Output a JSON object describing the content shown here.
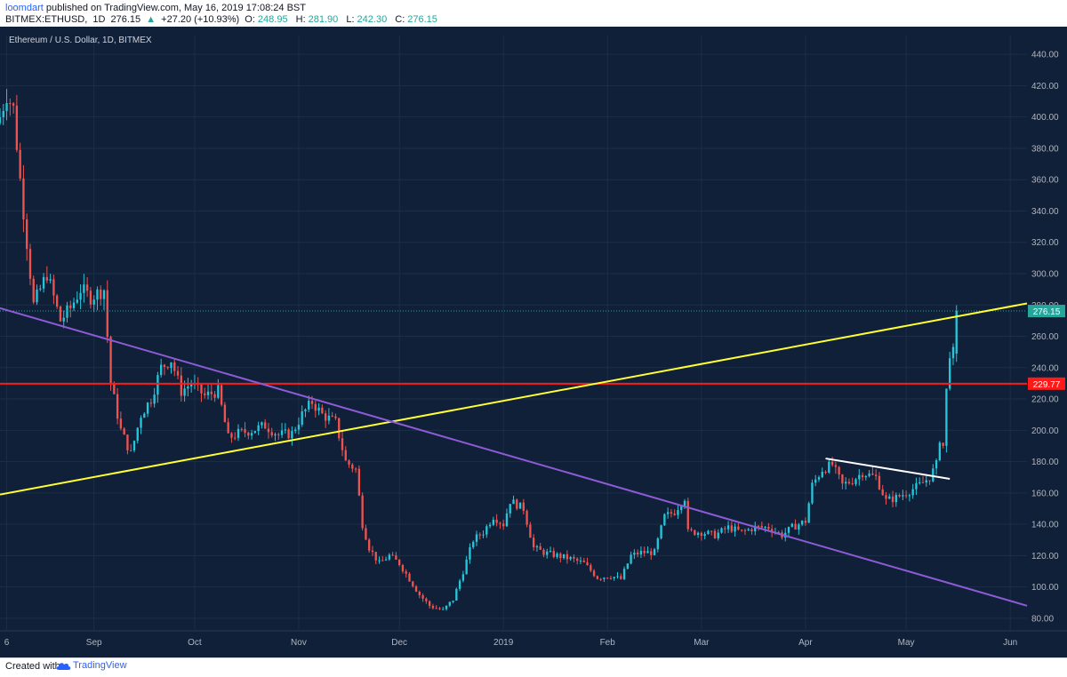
{
  "header": {
    "author": "loomdart",
    "published": "published on TradingView.com, May 16, 2019 17:08:24 BST",
    "symbol": "BITMEX:ETHUSD,",
    "interval": "1D",
    "last": "276.15",
    "change": "+27.20 (+10.93%)",
    "open_label": "O:",
    "open": "248.95",
    "high_label": "H:",
    "high": "281.90",
    "low_label": "L:",
    "low": "242.30",
    "close_label": "C:",
    "close": "276.15"
  },
  "footer": {
    "created": "Created with",
    "brand": "TradingView"
  },
  "colors": {
    "background": "#0f2038",
    "up": "#26c6da",
    "down": "#ef5350",
    "yellow_line": "#ffff33",
    "purple_line": "#8e5bd6",
    "red_line": "#ff1a1a",
    "white_line": "#ffffff",
    "axis_text": "#b2b5be"
  },
  "chart_data": {
    "type": "candlestick",
    "title": "Ethereum / U.S. Dollar, 1D, BITMEX",
    "ylim": [
      72,
      452
    ],
    "y_ticks": [
      80,
      100,
      120,
      140,
      160,
      180,
      200,
      220,
      240,
      260,
      280,
      300,
      320,
      340,
      360,
      380,
      400,
      420,
      440
    ],
    "y_tick_labels": [
      "80.00",
      "100.00",
      "120.00",
      "140.00",
      "160.00",
      "180.00",
      "200.00",
      "220.00",
      "240.00",
      "260.00",
      "280.00",
      "300.00",
      "320.00",
      "340.00",
      "360.00",
      "380.00",
      "400.00",
      "420.00",
      "440.00"
    ],
    "x_range": [
      "2018-08-04",
      "2019-06-06"
    ],
    "x_ticks": [
      {
        "date": "2018-08-06",
        "label": "6"
      },
      {
        "date": "2018-09-01",
        "label": "Sep"
      },
      {
        "date": "2018-10-01",
        "label": "Oct"
      },
      {
        "date": "2018-11-01",
        "label": "Nov"
      },
      {
        "date": "2018-12-01",
        "label": "Dec"
      },
      {
        "date": "2019-01-01",
        "label": "2019"
      },
      {
        "date": "2019-02-01",
        "label": "Feb"
      },
      {
        "date": "2019-03-01",
        "label": "Mar"
      },
      {
        "date": "2019-04-01",
        "label": "Apr"
      },
      {
        "date": "2019-05-01",
        "label": "May"
      },
      {
        "date": "2019-06-01",
        "label": "Jun"
      }
    ],
    "price_anchors": [
      [
        "2018-08-04",
        400
      ],
      [
        "2018-08-06",
        415
      ],
      [
        "2018-08-08",
        405
      ],
      [
        "2018-08-10",
        360
      ],
      [
        "2018-08-12",
        320
      ],
      [
        "2018-08-14",
        280
      ],
      [
        "2018-08-16",
        290
      ],
      [
        "2018-08-18",
        300
      ],
      [
        "2018-08-20",
        285
      ],
      [
        "2018-08-22",
        270
      ],
      [
        "2018-08-25",
        278
      ],
      [
        "2018-08-28",
        290
      ],
      [
        "2018-08-31",
        285
      ],
      [
        "2018-09-04",
        290
      ],
      [
        "2018-09-06",
        230
      ],
      [
        "2018-09-09",
        200
      ],
      [
        "2018-09-12",
        185
      ],
      [
        "2018-09-15",
        210
      ],
      [
        "2018-09-18",
        220
      ],
      [
        "2018-09-21",
        240
      ],
      [
        "2018-09-24",
        245
      ],
      [
        "2018-09-27",
        225
      ],
      [
        "2018-09-30",
        230
      ],
      [
        "2018-10-04",
        222
      ],
      [
        "2018-10-08",
        225
      ],
      [
        "2018-10-11",
        195
      ],
      [
        "2018-10-14",
        198
      ],
      [
        "2018-10-18",
        200
      ],
      [
        "2018-10-22",
        203
      ],
      [
        "2018-10-26",
        197
      ],
      [
        "2018-10-30",
        198
      ],
      [
        "2018-11-02",
        210
      ],
      [
        "2018-11-05",
        218
      ],
      [
        "2018-11-08",
        210
      ],
      [
        "2018-11-12",
        205
      ],
      [
        "2018-11-15",
        180
      ],
      [
        "2018-11-18",
        175
      ],
      [
        "2018-11-20",
        140
      ],
      [
        "2018-11-22",
        125
      ],
      [
        "2018-11-25",
        115
      ],
      [
        "2018-11-28",
        120
      ],
      [
        "2018-12-01",
        115
      ],
      [
        "2018-12-04",
        105
      ],
      [
        "2018-12-07",
        95
      ],
      [
        "2018-12-10",
        88
      ],
      [
        "2018-12-14",
        85
      ],
      [
        "2018-12-17",
        92
      ],
      [
        "2018-12-20",
        110
      ],
      [
        "2018-12-23",
        130
      ],
      [
        "2018-12-26",
        135
      ],
      [
        "2018-12-29",
        145
      ],
      [
        "2019-01-01",
        140
      ],
      [
        "2019-01-03",
        155
      ],
      [
        "2019-01-07",
        150
      ],
      [
        "2019-01-10",
        125
      ],
      [
        "2019-01-13",
        122
      ],
      [
        "2019-01-17",
        120
      ],
      [
        "2019-01-21",
        118
      ],
      [
        "2019-01-25",
        115
      ],
      [
        "2019-01-29",
        106
      ],
      [
        "2019-02-02",
        107
      ],
      [
        "2019-02-05",
        105
      ],
      [
        "2019-02-08",
        120
      ],
      [
        "2019-02-11",
        122
      ],
      [
        "2019-02-15",
        122
      ],
      [
        "2019-02-18",
        145
      ],
      [
        "2019-02-21",
        148
      ],
      [
        "2019-02-24",
        157
      ],
      [
        "2019-02-25",
        135
      ],
      [
        "2019-03-01",
        135
      ],
      [
        "2019-03-05",
        133
      ],
      [
        "2019-03-09",
        138
      ],
      [
        "2019-03-13",
        135
      ],
      [
        "2019-03-17",
        138
      ],
      [
        "2019-03-21",
        138
      ],
      [
        "2019-03-25",
        133
      ],
      [
        "2019-03-28",
        138
      ],
      [
        "2019-04-01",
        142
      ],
      [
        "2019-04-03",
        165
      ],
      [
        "2019-04-06",
        175
      ],
      [
        "2019-04-09",
        178
      ],
      [
        "2019-04-12",
        165
      ],
      [
        "2019-04-15",
        168
      ],
      [
        "2019-04-18",
        173
      ],
      [
        "2019-04-22",
        170
      ],
      [
        "2019-04-25",
        155
      ],
      [
        "2019-04-28",
        157
      ],
      [
        "2019-05-01",
        160
      ],
      [
        "2019-05-05",
        165
      ],
      [
        "2019-05-08",
        170
      ],
      [
        "2019-05-10",
        178
      ],
      [
        "2019-05-11",
        195
      ],
      [
        "2019-05-12",
        190
      ],
      [
        "2019-05-13",
        225
      ],
      [
        "2019-05-14",
        250
      ],
      [
        "2019-05-15",
        249
      ],
      [
        "2019-05-16",
        276.15
      ]
    ],
    "lines": [
      {
        "color": "#ffff33",
        "from": [
          "2018-08-04",
          159
        ],
        "to": [
          "2019-06-06",
          281
        ]
      },
      {
        "color": "#8e5bd6",
        "from": [
          "2018-08-04",
          278
        ],
        "to": [
          "2019-06-06",
          88
        ]
      },
      {
        "color": "#ffffff",
        "from": [
          "2019-04-07",
          182
        ],
        "to": [
          "2019-05-14",
          169
        ]
      }
    ],
    "hlines": [
      {
        "value": 229.77,
        "label": "229.77",
        "color": "#ff1a1a"
      },
      {
        "value": 276.15,
        "label": "276.15",
        "color": "#26a69a",
        "dotted": true
      }
    ]
  }
}
